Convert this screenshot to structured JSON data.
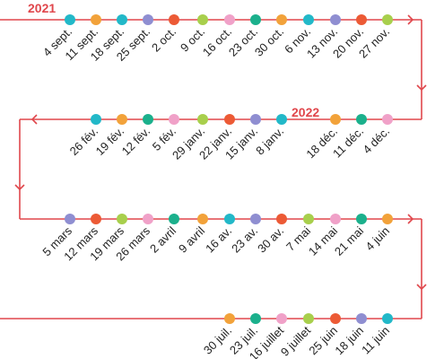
{
  "line_color": "#e0474c",
  "palette": {
    "teal": "#22b8c8",
    "orange": "#f2a23a",
    "purple": "#8f8ed1",
    "red": "#ec5a35",
    "green": "#a8cf4c",
    "pink": "#f0a1c8",
    "emerald": "#1bb08c"
  },
  "year_labels": {
    "y2021": "2021",
    "y2022": "2022"
  },
  "rows": [
    {
      "name": "row-1",
      "points": [
        {
          "label": "4 sept.",
          "color": "teal"
        },
        {
          "label": "11 sept.",
          "color": "orange"
        },
        {
          "label": "18 sept.",
          "color": "teal"
        },
        {
          "label": "25 sept.",
          "color": "purple"
        },
        {
          "label": "2 oct.",
          "color": "red"
        },
        {
          "label": "9 oct.",
          "color": "green"
        },
        {
          "label": "16 oct.",
          "color": "pink"
        },
        {
          "label": "23 oct.",
          "color": "emerald"
        },
        {
          "label": "30 oct.",
          "color": "orange"
        },
        {
          "label": "6 nov.",
          "color": "teal"
        },
        {
          "label": "13 nov.",
          "color": "purple"
        },
        {
          "label": "20 nov.",
          "color": "red"
        },
        {
          "label": "27 nov.",
          "color": "green"
        }
      ]
    },
    {
      "name": "row-2",
      "points": [
        {
          "label": "26 fév.",
          "color": "teal"
        },
        {
          "label": "19 fév.",
          "color": "orange"
        },
        {
          "label": "12 fév.",
          "color": "emerald"
        },
        {
          "label": "5 fév.",
          "color": "pink"
        },
        {
          "label": "29 janv.",
          "color": "green"
        },
        {
          "label": "22 janv.",
          "color": "red"
        },
        {
          "label": "15 janv.",
          "color": "purple"
        },
        {
          "label": "8 janv.",
          "color": "teal"
        },
        {
          "label": "18 déc.",
          "color": "orange"
        },
        {
          "label": "11 déc.",
          "color": "emerald"
        },
        {
          "label": "4 déc.",
          "color": "pink"
        }
      ]
    },
    {
      "name": "row-3",
      "points": [
        {
          "label": "5 mars",
          "color": "purple"
        },
        {
          "label": "12 mars",
          "color": "red"
        },
        {
          "label": "19 mars",
          "color": "green"
        },
        {
          "label": "26 mars",
          "color": "pink"
        },
        {
          "label": "2 avril",
          "color": "emerald"
        },
        {
          "label": "9 avril",
          "color": "orange"
        },
        {
          "label": "16 av.",
          "color": "teal"
        },
        {
          "label": "23 av.",
          "color": "purple"
        },
        {
          "label": "30 av.",
          "color": "red"
        },
        {
          "label": "7 mai",
          "color": "green"
        },
        {
          "label": "14 mai",
          "color": "pink"
        },
        {
          "label": "21 mai",
          "color": "emerald"
        },
        {
          "label": "4 juin",
          "color": "orange"
        }
      ]
    },
    {
      "name": "row-4",
      "points": [
        {
          "label": "30 juil.",
          "color": "orange"
        },
        {
          "label": "23 juil.",
          "color": "emerald"
        },
        {
          "label": "16 juillet",
          "color": "pink"
        },
        {
          "label": "9 juillet",
          "color": "green"
        },
        {
          "label": "25 juin",
          "color": "red"
        },
        {
          "label": "18 juin",
          "color": "purple"
        },
        {
          "label": "11 juin",
          "color": "teal"
        }
      ]
    }
  ]
}
